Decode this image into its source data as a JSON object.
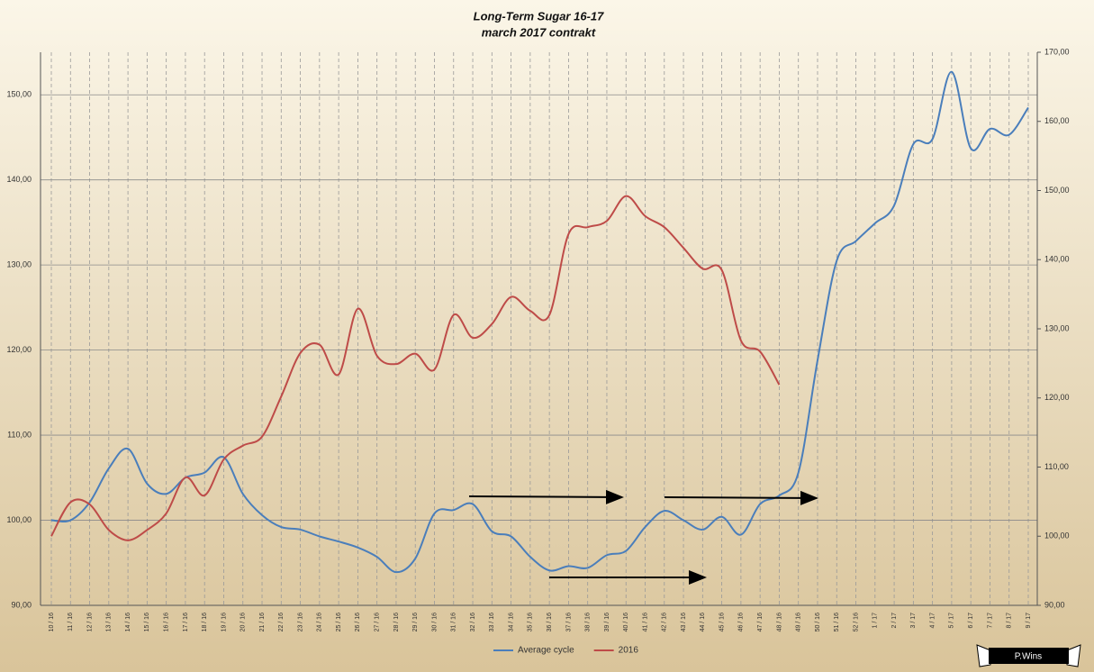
{
  "chart_data": {
    "type": "line",
    "title": "Long-Term Sugar 16-17",
    "subtitle": "march 2017 contrakt",
    "categories": [
      "10 / 16",
      "11 / 16",
      "12 / 16",
      "13 / 16",
      "14 / 16",
      "15 / 16",
      "16 / 16",
      "17 / 16",
      "18 / 16",
      "19 / 16",
      "20 / 16",
      "21 / 16",
      "22 / 16",
      "23 / 16",
      "24 / 16",
      "25 / 16",
      "26 / 16",
      "27 / 16",
      "28 / 16",
      "29 / 16",
      "30 / 16",
      "31 / 16",
      "32 / 16",
      "33 / 16",
      "34 / 16",
      "35 / 16",
      "36 / 16",
      "37 / 16",
      "38 / 16",
      "39 / 16",
      "40 / 16",
      "41 / 16",
      "42 / 16",
      "43 / 16",
      "44 / 16",
      "45 / 16",
      "46 / 16",
      "47 / 16",
      "48 / 16",
      "49 / 16",
      "50 / 16",
      "51 / 16",
      "52 / 16",
      "1 / 17",
      "2 / 17",
      "3 / 17",
      "4 / 17",
      "5 / 17",
      "6 / 17",
      "7 / 17",
      "8 / 17",
      "9 / 17"
    ],
    "series": [
      {
        "name": "Average cycle",
        "color": "#4a7ebb",
        "axis": "y",
        "values": [
          100.0,
          100.0,
          102.1,
          106.1,
          108.4,
          104.3,
          103.1,
          105.0,
          105.6,
          107.4,
          103.1,
          100.6,
          99.2,
          98.9,
          98.1,
          97.5,
          96.8,
          95.7,
          93.9,
          95.5,
          100.8,
          101.2,
          101.9,
          98.7,
          98.1,
          95.7,
          94.1,
          94.6,
          94.4,
          95.9,
          96.4,
          99.2,
          101.1,
          100.0,
          98.9,
          100.4,
          98.3,
          101.9,
          102.9,
          105.6,
          118.8,
          130.5,
          132.8,
          134.9,
          137.0,
          144.2,
          144.8,
          152.7,
          143.7,
          146.0,
          145.3,
          148.5
        ]
      },
      {
        "name": "2016",
        "color": "#be4b48",
        "axis": "y2",
        "values": [
          100.0,
          104.9,
          104.6,
          100.9,
          99.4,
          100.9,
          103.3,
          108.5,
          105.9,
          111.1,
          113.1,
          114.4,
          120.2,
          126.5,
          127.7,
          123.4,
          132.9,
          126.1,
          124.9,
          126.4,
          124.1,
          132.0,
          128.7,
          130.7,
          134.6,
          132.6,
          132.0,
          143.7,
          144.7,
          145.6,
          149.2,
          146.3,
          144.7,
          141.7,
          138.7,
          138.5,
          128.3,
          126.7,
          121.9,
          null,
          null,
          null,
          null,
          null,
          null,
          null,
          null,
          null,
          null,
          null,
          null,
          null
        ]
      }
    ],
    "ylim": [
      90,
      155
    ],
    "yticks": [
      {
        "value": 90,
        "label": "90,00"
      },
      {
        "value": 100,
        "label": "100,00"
      },
      {
        "value": 110,
        "label": "110,00"
      },
      {
        "value": 120,
        "label": "120,00"
      },
      {
        "value": 130,
        "label": "130,00"
      },
      {
        "value": 140,
        "label": "140,00"
      },
      {
        "value": 150,
        "label": "150,00"
      }
    ],
    "y2lim": [
      90,
      170
    ],
    "y2ticks": [
      {
        "value": 90,
        "label": "90,00"
      },
      {
        "value": 100,
        "label": "100,00"
      },
      {
        "value": 110,
        "label": "110,00"
      },
      {
        "value": 120,
        "label": "120,00"
      },
      {
        "value": 130,
        "label": "130,00"
      },
      {
        "value": 140,
        "label": "140,00"
      },
      {
        "value": 150,
        "label": "150,00"
      },
      {
        "value": 160,
        "label": "160,00"
      },
      {
        "value": 170,
        "label": "170,00"
      }
    ],
    "grid": true,
    "legend": "bottom",
    "badge": "P.Wins"
  }
}
